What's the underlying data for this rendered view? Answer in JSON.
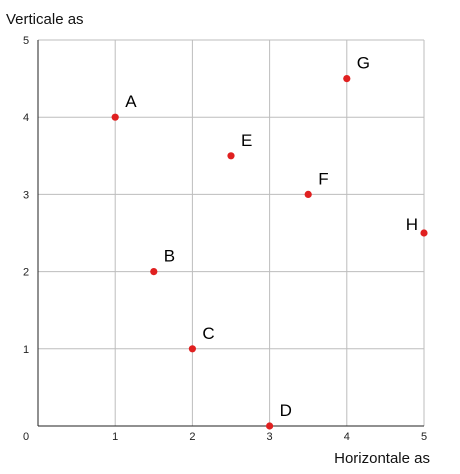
{
  "chart_data": {
    "type": "scatter",
    "xlabel": "Horizontale as",
    "ylabel": "Verticale as",
    "xlim": [
      0,
      5
    ],
    "ylim": [
      0,
      5
    ],
    "x_ticks": [
      "0",
      "1",
      "2",
      "3",
      "4",
      "5"
    ],
    "y_ticks": [
      "1",
      "2",
      "3",
      "4",
      "5"
    ],
    "grid": true,
    "colors": {
      "point": "#e02020",
      "grid": "#bdbdbd",
      "axis": "#222222"
    },
    "points": [
      {
        "label": "A",
        "x": 1.0,
        "y": 4.0
      },
      {
        "label": "B",
        "x": 1.5,
        "y": 2.0
      },
      {
        "label": "C",
        "x": 2.0,
        "y": 1.0
      },
      {
        "label": "D",
        "x": 3.0,
        "y": 0.0
      },
      {
        "label": "E",
        "x": 2.5,
        "y": 3.5
      },
      {
        "label": "F",
        "x": 3.5,
        "y": 3.0
      },
      {
        "label": "G",
        "x": 4.0,
        "y": 4.5
      },
      {
        "label": "H",
        "x": 5.0,
        "y": 2.5
      }
    ]
  }
}
